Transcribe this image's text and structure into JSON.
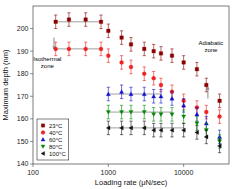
{
  "chart_data": {
    "type": "scatter",
    "x_label": "Loading rate (μN/sec)",
    "y_label": "Maximum depth (nm)",
    "log": "x",
    "grid": false,
    "legend": "lower left",
    "xlim": [
      100,
      40000
    ],
    "xticks": [
      100,
      1000,
      10000
    ],
    "ylim": [
      140,
      210
    ],
    "yticks": [
      140,
      150,
      160,
      170,
      180,
      190,
      200
    ],
    "series": [
      {
        "name": "23°C",
        "color": "#8b0000",
        "marker": "square",
        "x": [
          200,
          300,
          500,
          800,
          1000,
          1500,
          2000,
          3000,
          4000,
          5000,
          7000,
          10000,
          15000,
          20000,
          30000
        ],
        "values": [
          203,
          204,
          204,
          203,
          199,
          196,
          193,
          191,
          190,
          189,
          188,
          185,
          182,
          175,
          168
        ],
        "errors": [
          3,
          3,
          3,
          3,
          3,
          3,
          3,
          3,
          3,
          3,
          3,
          3,
          3,
          3,
          3
        ],
        "plateau_end": 800
      },
      {
        "name": "40°C",
        "color": "#ee2222",
        "marker": "circle",
        "x": [
          200,
          300,
          500,
          800,
          1000,
          1500,
          2000,
          3000,
          4000,
          5000,
          7000,
          10000,
          15000,
          20000,
          30000
        ],
        "values": [
          191,
          191,
          191,
          191,
          188,
          185,
          183,
          180,
          178,
          175,
          172,
          168,
          165,
          163,
          161
        ],
        "errors": [
          3,
          3,
          3,
          3,
          3,
          3,
          3,
          3,
          3,
          3,
          3,
          3,
          3,
          3,
          3
        ],
        "plateau_end": 800
      },
      {
        "name": "60°C",
        "color": "#1111cc",
        "marker": "triangle-up",
        "x": [
          1000,
          1500,
          2000,
          3000,
          4000,
          5000,
          7000,
          10000,
          15000,
          20000,
          30000
        ],
        "values": [
          171,
          172,
          171,
          171,
          170,
          170,
          169,
          166,
          162,
          158,
          152
        ],
        "errors": [
          3,
          3,
          3,
          3,
          3,
          3,
          3,
          3,
          3,
          3,
          3
        ],
        "plateau_end": 5000
      },
      {
        "name": "80°C",
        "color": "#008800",
        "marker": "triangle-down",
        "x": [
          1000,
          1500,
          2000,
          3000,
          4000,
          5000,
          7000,
          10000,
          15000,
          20000,
          30000
        ],
        "values": [
          163,
          163,
          163,
          163,
          162,
          162,
          162,
          161,
          158,
          155,
          150
        ],
        "errors": [
          3,
          3,
          3,
          3,
          3,
          3,
          3,
          3,
          3,
          3,
          3
        ],
        "plateau_end": 7000
      },
      {
        "name": "100°C",
        "color": "#111111",
        "marker": "triangle-left",
        "x": [
          1000,
          1500,
          2000,
          3000,
          4000,
          5000,
          7000,
          10000,
          15000,
          20000,
          30000
        ],
        "values": [
          156,
          156,
          156,
          156,
          155,
          155,
          155,
          155,
          154,
          152,
          148
        ],
        "errors": [
          3,
          3,
          3,
          3,
          3,
          3,
          3,
          3,
          3,
          3,
          3
        ],
        "plateau_end": 10000
      }
    ],
    "annotations": [
      {
        "text": "Isothermal\nzone",
        "x": 155,
        "y": 185,
        "arrow": {
          "x": 190,
          "from": 196,
          "to": 191
        }
      },
      {
        "text": "Adiabatic\nzone",
        "x": 23000,
        "y": 192,
        "arrow": {
          "x": 21000,
          "from": 169,
          "to": 174
        }
      }
    ]
  }
}
